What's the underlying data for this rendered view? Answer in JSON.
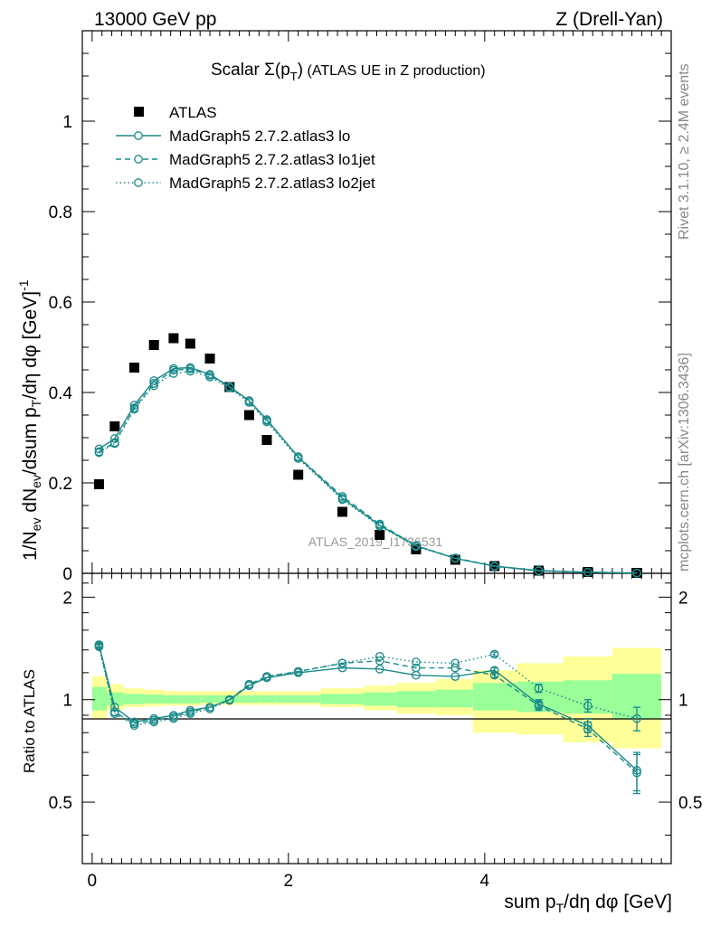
{
  "header": {
    "left": "13000 GeV pp",
    "right": "Z (Drell-Yan)"
  },
  "title": {
    "main": "Scalar Σ(p",
    "sub": "T",
    "close": ")",
    "suffix": " (ATLAS UE in Z production)"
  },
  "side": {
    "rivet": "Rivet 3.1.10, ≥ 2.4M events",
    "mcplots": "mcplots.cern.ch [arXiv:1306.3436]"
  },
  "watermark": "ATLAS_2019_I1736531",
  "axes": {
    "ylabel_main": "1/N_ev dN_ev/dsum p_T/dη dφ [GeV]^-1",
    "ylabel_ratio": "Ratio to ATLAS",
    "xlabel": "sum p_T/dη dφ [GeV]"
  },
  "colors": {
    "mc": "#1a8a8a",
    "band_inner": "#99ff99",
    "band_outer": "#ffff99",
    "data": "#000000"
  },
  "chart_data": [
    {
      "type": "scatter",
      "panel": "main",
      "xlim": [
        -0.1,
        5.9
      ],
      "ylim": [
        0,
        1.2
      ],
      "yticks": [
        0.2,
        0.4,
        0.6,
        0.8,
        1
      ],
      "legend": "top-left",
      "x": [
        0.07,
        0.23,
        0.43,
        0.63,
        0.83,
        1.0,
        1.2,
        1.4,
        1.6,
        1.78,
        2.1,
        2.55,
        2.93,
        3.3,
        3.7,
        4.1,
        4.55,
        5.05,
        5.55
      ],
      "series": [
        {
          "name": "ATLAS",
          "style": "square",
          "values": [
            0.197,
            0.325,
            0.455,
            0.505,
            0.52,
            0.508,
            0.475,
            0.412,
            0.35,
            0.295,
            0.218,
            0.136,
            0.085,
            0.053,
            0.03,
            0.016,
            0.006,
            0.003,
            0.001
          ]
        },
        {
          "name": "MadGraph5 2.7.2.atlas3 lo",
          "style": "solid",
          "values": [
            0.275,
            0.298,
            0.372,
            0.426,
            0.453,
            0.455,
            0.44,
            0.413,
            0.382,
            0.34,
            0.257,
            0.166,
            0.106,
            0.061,
            0.033,
            0.016,
            0.006,
            0.0025,
            0.0006
          ]
        },
        {
          "name": "MadGraph5 2.7.2.atlas3 lo1jet",
          "style": "dashed",
          "values": [
            0.269,
            0.289,
            0.366,
            0.42,
            0.449,
            0.452,
            0.438,
            0.412,
            0.381,
            0.338,
            0.258,
            0.17,
            0.109,
            0.061,
            0.034,
            0.016,
            0.0055,
            0.0024,
            0.0006
          ]
        },
        {
          "name": "MadGraph5 2.7.2.atlas3 lo2jet",
          "style": "dotted",
          "values": [
            0.267,
            0.287,
            0.363,
            0.415,
            0.442,
            0.447,
            0.434,
            0.41,
            0.378,
            0.335,
            0.254,
            0.163,
            0.104,
            0.059,
            0.033,
            0.015,
            0.0057,
            0.0025,
            0.0007
          ]
        }
      ]
    },
    {
      "type": "line",
      "panel": "ratio",
      "xlim": [
        -0.1,
        5.9
      ],
      "ylim": [
        0.33,
        2.35
      ],
      "yticks": [
        0.5,
        1,
        2
      ],
      "xticks": [
        0,
        2,
        4
      ],
      "x": [
        0.07,
        0.23,
        0.43,
        0.63,
        0.83,
        1.0,
        1.2,
        1.4,
        1.6,
        1.78,
        2.1,
        2.55,
        2.93,
        3.3,
        3.7,
        4.1,
        4.55,
        5.05,
        5.55
      ],
      "bands": {
        "edges": [
          0,
          0.15,
          0.32,
          0.53,
          0.73,
          0.92,
          1.1,
          1.3,
          1.5,
          1.7,
          1.88,
          2.33,
          2.77,
          3.1,
          3.5,
          3.88,
          4.33,
          4.8,
          5.3,
          5.8
        ],
        "inner": [
          [
            0.93,
            1.09
          ],
          [
            0.96,
            1.05
          ],
          [
            0.97,
            1.04
          ],
          [
            0.975,
            1.035
          ],
          [
            0.975,
            1.03
          ],
          [
            0.975,
            1.03
          ],
          [
            0.98,
            1.03
          ],
          [
            0.98,
            1.03
          ],
          [
            0.98,
            1.03
          ],
          [
            0.98,
            1.03
          ],
          [
            0.98,
            1.03
          ],
          [
            0.97,
            1.04
          ],
          [
            0.96,
            1.05
          ],
          [
            0.95,
            1.06
          ],
          [
            0.95,
            1.07
          ],
          [
            0.93,
            1.12
          ],
          [
            0.92,
            1.13
          ],
          [
            0.91,
            1.14
          ],
          [
            0.88,
            1.19
          ]
        ],
        "outer": [
          [
            0.88,
            1.17
          ],
          [
            0.93,
            1.11
          ],
          [
            0.95,
            1.08
          ],
          [
            0.955,
            1.07
          ],
          [
            0.96,
            1.06
          ],
          [
            0.96,
            1.06
          ],
          [
            0.965,
            1.06
          ],
          [
            0.965,
            1.06
          ],
          [
            0.965,
            1.06
          ],
          [
            0.965,
            1.06
          ],
          [
            0.965,
            1.06
          ],
          [
            0.95,
            1.08
          ],
          [
            0.93,
            1.1
          ],
          [
            0.91,
            1.12
          ],
          [
            0.9,
            1.15
          ],
          [
            0.8,
            1.22
          ],
          [
            0.79,
            1.28
          ],
          [
            0.75,
            1.34
          ],
          [
            0.72,
            1.42
          ]
        ]
      },
      "series": [
        {
          "name": "MadGraph5 2.7.2.atlas3 lo",
          "style": "solid",
          "values": [
            1.45,
            0.95,
            0.86,
            0.88,
            0.9,
            0.93,
            0.95,
            1.0,
            1.1,
            1.16,
            1.2,
            1.24,
            1.23,
            1.18,
            1.17,
            1.22,
            0.97,
            0.84,
            0.62
          ],
          "err": [
            0.02,
            0.01,
            0.01,
            0.01,
            0.01,
            0.01,
            0.01,
            0.01,
            0.01,
            0.01,
            0.01,
            0.01,
            0.01,
            0.01,
            0.01,
            0.02,
            0.03,
            0.04,
            0.08
          ]
        },
        {
          "name": "MadGraph5 2.7.2.atlas3 lo1jet",
          "style": "dashed",
          "values": [
            1.44,
            0.92,
            0.85,
            0.87,
            0.89,
            0.92,
            0.95,
            1.0,
            1.11,
            1.17,
            1.21,
            1.28,
            1.3,
            1.24,
            1.24,
            1.18,
            0.96,
            0.82,
            0.61
          ],
          "err": [
            0.02,
            0.01,
            0.01,
            0.01,
            0.01,
            0.01,
            0.01,
            0.01,
            0.01,
            0.01,
            0.01,
            0.01,
            0.01,
            0.01,
            0.01,
            0.02,
            0.03,
            0.04,
            0.08
          ]
        },
        {
          "name": "MadGraph5 2.7.2.atlas3 lo2jet",
          "style": "dotted",
          "values": [
            1.43,
            0.91,
            0.84,
            0.86,
            0.88,
            0.91,
            0.94,
            0.995,
            1.1,
            1.17,
            1.21,
            1.28,
            1.34,
            1.29,
            1.28,
            1.36,
            1.08,
            0.96,
            0.88
          ],
          "err": [
            0.02,
            0.01,
            0.01,
            0.01,
            0.01,
            0.01,
            0.01,
            0.01,
            0.01,
            0.01,
            0.01,
            0.01,
            0.01,
            0.01,
            0.01,
            0.02,
            0.03,
            0.04,
            0.07
          ]
        }
      ]
    }
  ]
}
